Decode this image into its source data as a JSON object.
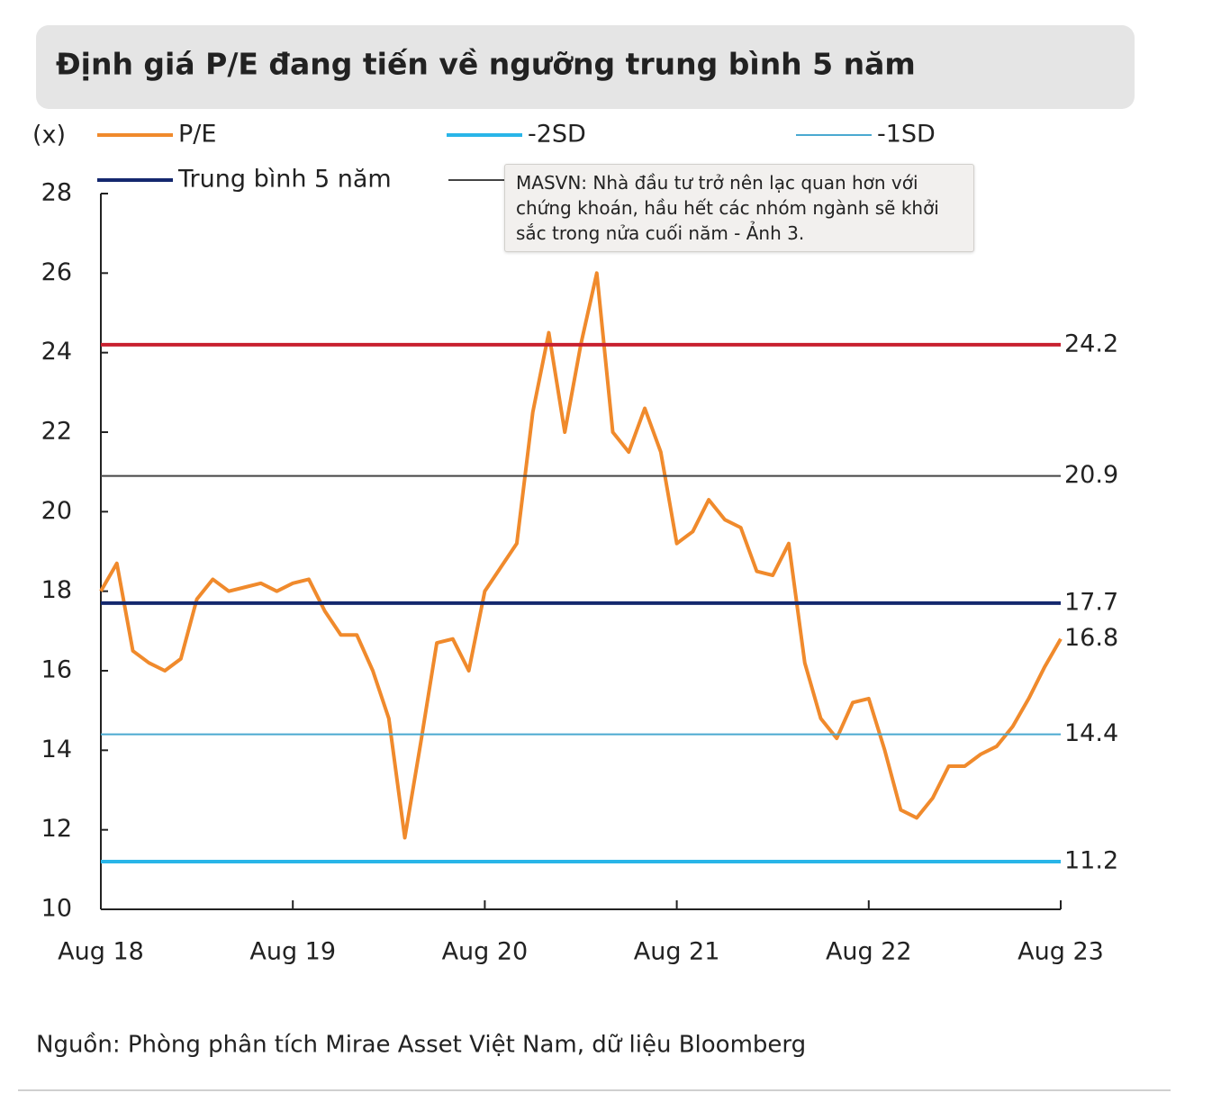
{
  "chart_data": {
    "type": "line",
    "title": "Định giá P/E đang tiến về ngưỡng trung bình 5 năm",
    "y_unit": "(x)",
    "source": "Nguồn: Phòng phân tích Mirae Asset Việt Nam, dữ liệu Bloomberg",
    "tooltip": "MASVN: Nhà đầu tư trở nên lạc quan hơn với chứng khoán, hầu hết các nhóm ngành sẽ khởi sắc trong nửa cuối năm - Ảnh 3.",
    "x": [
      0,
      1,
      2,
      3,
      4,
      5,
      6,
      7,
      8,
      9,
      10,
      11,
      12,
      13,
      14,
      15,
      16,
      17,
      18,
      19,
      20,
      21,
      22,
      23,
      24,
      25,
      26,
      27,
      28,
      29,
      30,
      31,
      32,
      33,
      34,
      35,
      36,
      37,
      38,
      39,
      40,
      41,
      42,
      43,
      44,
      45,
      46,
      47,
      48,
      49,
      50,
      51,
      52,
      53,
      54,
      55,
      56,
      57,
      58,
      59,
      60
    ],
    "xlim": [
      0,
      60
    ],
    "xticks": [
      {
        "value": 0,
        "label": "Aug 18"
      },
      {
        "value": 12,
        "label": "Aug 19"
      },
      {
        "value": 24,
        "label": "Aug 20"
      },
      {
        "value": 36,
        "label": "Aug 21"
      },
      {
        "value": 48,
        "label": "Aug 22"
      },
      {
        "value": 60,
        "label": "Aug 23"
      }
    ],
    "ylim": [
      10,
      28
    ],
    "yticks": [
      10,
      12,
      14,
      16,
      18,
      20,
      22,
      24,
      26,
      28
    ],
    "series": [
      {
        "name": "P/E",
        "color": "#f08a2c",
        "values": [
          18.0,
          18.7,
          16.5,
          16.2,
          16.0,
          16.3,
          17.8,
          18.3,
          18.0,
          18.1,
          18.2,
          18.0,
          18.2,
          18.3,
          17.5,
          16.9,
          16.9,
          16.0,
          14.8,
          11.8,
          14.2,
          16.7,
          16.8,
          16.0,
          18.0,
          18.6,
          19.2,
          22.5,
          24.5,
          22.0,
          24.2,
          26.0,
          22.0,
          21.5,
          22.6,
          21.5,
          19.2,
          19.5,
          20.3,
          19.8,
          19.6,
          18.5,
          18.4,
          19.2,
          16.2,
          14.8,
          14.3,
          15.2,
          15.3,
          14.0,
          12.5,
          12.3,
          12.8,
          13.6,
          13.6,
          13.9,
          14.1,
          14.6,
          15.3,
          16.1,
          16.8
        ]
      },
      {
        "name": "-2SD",
        "color": "#29b5e8",
        "level": 11.2
      },
      {
        "name": "-1SD",
        "color": "#4aa9d0",
        "level": 14.4
      },
      {
        "name": "Trung bình 5 năm",
        "color": "#14286e",
        "level": 17.7
      },
      {
        "color": "#444444",
        "level": 20.9
      },
      {
        "color": "#c8202f",
        "level": 24.2
      }
    ]
  }
}
